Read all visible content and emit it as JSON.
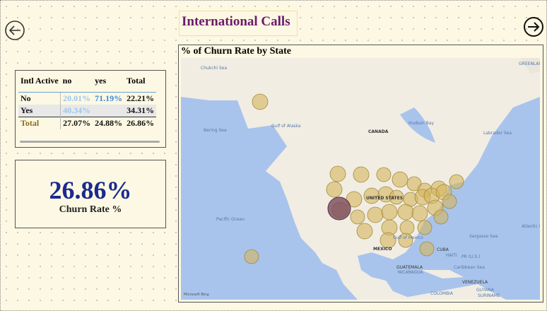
{
  "header": {
    "title": "International Calls"
  },
  "matrix": {
    "columns": [
      "Intl Active",
      "no",
      "yes",
      "Total"
    ],
    "rows": [
      [
        "No",
        "20.01%",
        "71.19%",
        "22.21%"
      ],
      [
        "Yes",
        "40.34%",
        null,
        "34.31%"
      ],
      [
        "Total",
        "27.07%",
        "24.88%",
        "26.86%"
      ]
    ]
  },
  "card": {
    "value": "26.86%",
    "label": "Churn Rate %"
  },
  "map": {
    "title": "% of Churn Rate by State",
    "labels": [
      "Chukchi Sea",
      "Gulf of Alaska",
      "Bering Sea",
      "CANADA",
      "Hudson Bay",
      "Labrador Sea",
      "GREENLAND (DEN.)",
      "Pacific Ocean",
      "UNITED STATES",
      "MEXICO",
      "Gulf of Mexico",
      "Sargasso Sea",
      "Atlantic Ocean",
      "CUBA",
      "HAITI",
      "PR (U.S.)",
      "Caribbean Sea",
      "GUATEMALA",
      "NICARAGUA",
      "VENEZUELA",
      "COLOMBIA",
      "GUYANA",
      "SURINAME"
    ],
    "attribution": "Microsoft Bing"
  }
}
